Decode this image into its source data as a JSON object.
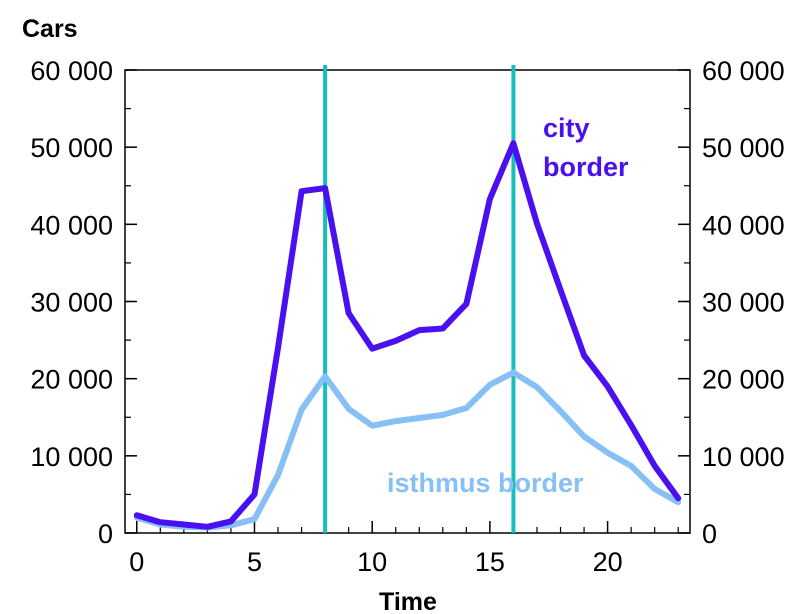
{
  "chart_data": {
    "type": "line",
    "ylabel": "Cars",
    "xlabel": "Time",
    "xlim": [
      -0.5,
      23.5
    ],
    "ylim": [
      0,
      60000
    ],
    "x_ticks": [
      0,
      5,
      10,
      15,
      20
    ],
    "x_tick_labels": [
      "0",
      "5",
      "10",
      "15",
      "20"
    ],
    "y_ticks": [
      0,
      10000,
      20000,
      30000,
      40000,
      50000,
      60000
    ],
    "y_tick_labels": [
      "0",
      "10 000",
      "20 000",
      "30 000",
      "40 000",
      "50 000",
      "60 000"
    ],
    "y_minor_step": 5000,
    "grid": false,
    "secondary_y_axis": true,
    "vertical_markers": {
      "x": [
        8,
        16
      ],
      "color": "#17BEBB"
    },
    "series": [
      {
        "name": "city border",
        "label_lines": [
          "city",
          "border"
        ],
        "color": "#4A10F0",
        "x": [
          0,
          1,
          2,
          3,
          4,
          5,
          6,
          7,
          8,
          9,
          10,
          11,
          12,
          13,
          14,
          15,
          16,
          17,
          18,
          19,
          20,
          21,
          22,
          23
        ],
        "values": [
          2300,
          1400,
          1100,
          800,
          1500,
          5000,
          24000,
          44300,
          44700,
          28500,
          23900,
          24900,
          26300,
          26500,
          29700,
          43300,
          50500,
          40100,
          31500,
          23000,
          19000,
          14000,
          8700,
          4500
        ]
      },
      {
        "name": "isthmus border",
        "label_lines": [
          "isthmus border"
        ],
        "color": "#86C0F4",
        "x": [
          0,
          1,
          2,
          3,
          4,
          5,
          6,
          7,
          8,
          9,
          10,
          11,
          12,
          13,
          14,
          15,
          16,
          17,
          18,
          19,
          20,
          21,
          22,
          23
        ],
        "values": [
          2000,
          1100,
          800,
          700,
          1000,
          1800,
          7500,
          16000,
          20300,
          16100,
          13900,
          14500,
          14900,
          15300,
          16200,
          19200,
          20800,
          18900,
          15800,
          12500,
          10400,
          8700,
          5700,
          4000
        ]
      }
    ]
  }
}
